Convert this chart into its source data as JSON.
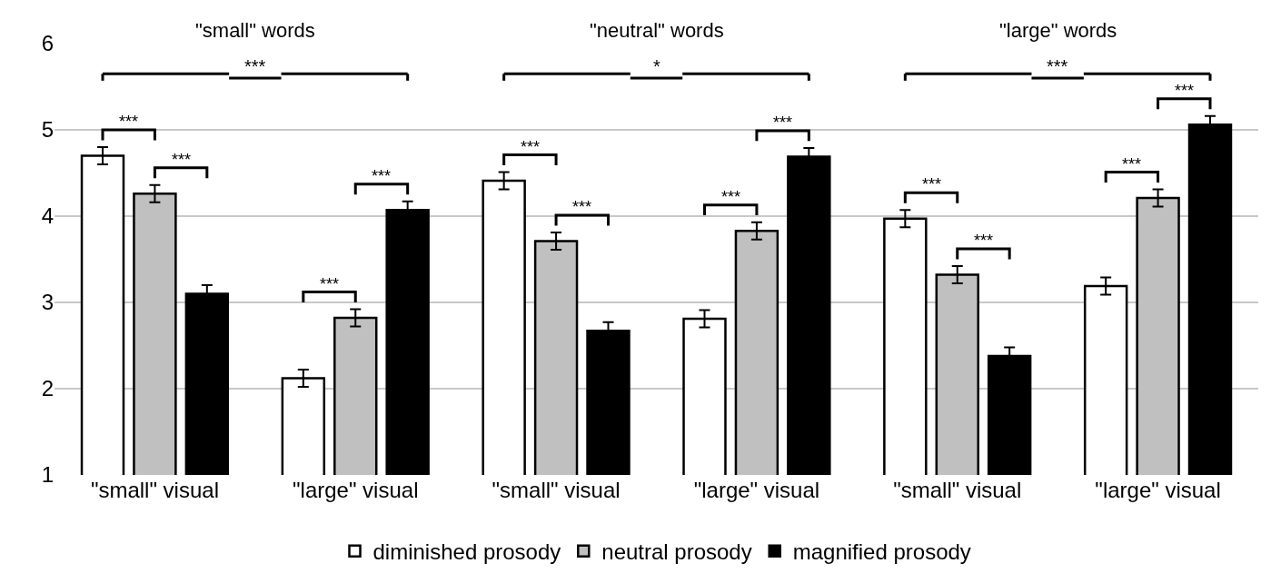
{
  "chart_data": {
    "type": "bar",
    "categories": [
      "\"small\" visual",
      "\"large\" visual",
      "\"small\" visual",
      "\"large\" visual",
      "\"small\" visual",
      "\"large\" visual"
    ],
    "series": [
      {
        "name": "diminished prosody",
        "color": "#ffffff",
        "values": [
          4.7,
          2.12,
          4.41,
          2.81,
          3.97,
          3.19
        ],
        "errors": [
          0.1,
          0.1,
          0.1,
          0.1,
          0.1,
          0.1
        ]
      },
      {
        "name": "neutral prosody",
        "color": "#c0c0c0",
        "values": [
          4.26,
          2.82,
          3.71,
          3.83,
          3.32,
          4.21
        ],
        "errors": [
          0.1,
          0.1,
          0.1,
          0.1,
          0.1,
          0.1
        ]
      },
      {
        "name": "magnified prosody",
        "color": "#000000",
        "values": [
          3.1,
          4.07,
          2.67,
          4.69,
          2.38,
          5.06
        ],
        "errors": [
          0.1,
          0.1,
          0.1,
          0.1,
          0.1,
          0.1
        ]
      }
    ],
    "ylim": [
      1,
      6
    ],
    "yticks": [
      1,
      2,
      3,
      4,
      5,
      6
    ],
    "grid": "y",
    "legend": "bottom",
    "annotations": [
      "\"small\" words",
      "***",
      "***",
      "***",
      "***",
      "***",
      "\"neutral\" words",
      "*",
      "***",
      "***",
      "***",
      "***",
      "\"large\" words",
      "***",
      "***",
      "***",
      "***",
      "***"
    ]
  }
}
